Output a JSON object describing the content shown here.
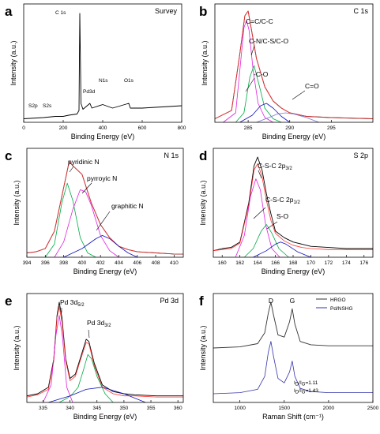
{
  "chart_data": [
    {
      "type": "line",
      "panel": "a",
      "title": "Survey",
      "xlabel": "Binding Energy (eV)",
      "ylabel": "Intensity (a.u.)",
      "xlim": [
        0,
        800
      ],
      "ylim": [
        0,
        100
      ],
      "xticks": [
        0,
        200,
        400,
        600,
        800
      ],
      "annotations": [
        {
          "text": "C 1s",
          "x": 284,
          "y": 93
        },
        {
          "text": "Pd3d",
          "x": 335,
          "y": 17
        },
        {
          "text": "N1s",
          "x": 400,
          "y": 22
        },
        {
          "text": "O1s",
          "x": 532,
          "y": 22
        },
        {
          "text": "S2p",
          "x": 160,
          "y": 2
        },
        {
          "text": "S2s",
          "x": 228,
          "y": 2
        }
      ],
      "series": [
        {
          "color": "#000000",
          "x": [
            0,
            100,
            160,
            200,
            228,
            270,
            280,
            284,
            290,
            300,
            335,
            345,
            400,
            450,
            532,
            540,
            600,
            700,
            800
          ],
          "y": [
            3,
            4,
            5,
            5,
            6,
            7,
            10,
            92,
            16,
            11,
            16,
            12,
            15,
            12,
            16,
            12,
            12,
            13,
            14
          ]
        }
      ]
    },
    {
      "type": "line",
      "panel": "b",
      "title": "C 1s",
      "xlabel": "Binding Energy (eV)",
      "ylabel": "Intensity (a.u.)",
      "xlim": [
        281,
        300
      ],
      "ylim": [
        0,
        100
      ],
      "xticks": [
        285,
        290,
        295
      ],
      "annotations": [
        {
          "text": "C=C/C-C",
          "x": 284.8,
          "y": 96
        },
        {
          "text": "C-N/C-S/C-O",
          "x": 285.8,
          "y": 69
        },
        {
          "text": "-C-O",
          "x": 287.1,
          "y": 22
        },
        {
          "text": "C=O",
          "x": 289.5,
          "y": 8
        }
      ],
      "series": [
        {
          "color": "#000000",
          "x": [
            281,
            283,
            284,
            284.6,
            285,
            285.5,
            286,
            287,
            288,
            289,
            290,
            292,
            295,
            300
          ],
          "y": [
            3,
            10,
            58,
            90,
            94,
            74,
            54,
            30,
            18,
            12,
            8,
            5,
            4,
            3
          ]
        },
        {
          "color": "#ff3333",
          "x": [
            281,
            283,
            284,
            284.6,
            285,
            285.5,
            286,
            287,
            288,
            289,
            290,
            292,
            295,
            300
          ],
          "y": [
            3,
            10,
            58,
            90,
            94,
            74,
            54,
            30,
            18,
            12,
            8,
            5,
            4,
            3
          ]
        },
        {
          "color": "#e020e0",
          "x": [
            282,
            283.5,
            284,
            284.5,
            284.8,
            285.1,
            285.6,
            286.2,
            287,
            288
          ],
          "y": [
            0,
            8,
            44,
            80,
            86,
            78,
            44,
            16,
            4,
            0
          ]
        },
        {
          "color": "#00aa44",
          "x": [
            283.5,
            284.5,
            285.2,
            285.7,
            286.3,
            287,
            288,
            289
          ],
          "y": [
            0,
            8,
            38,
            48,
            32,
            12,
            3,
            0
          ]
        },
        {
          "color": "#1111bb",
          "x": [
            284,
            285.5,
            286.5,
            287.2,
            288,
            289,
            290
          ],
          "y": [
            0,
            6,
            14,
            16,
            12,
            5,
            0
          ]
        },
        {
          "color": "#7777dd",
          "x": [
            286,
            287.5,
            288.5,
            289.5,
            290.5,
            292,
            293.5
          ],
          "y": [
            0,
            4,
            7,
            8,
            7,
            4,
            0
          ]
        }
      ]
    },
    {
      "type": "line",
      "panel": "c",
      "title": "N 1s",
      "xlabel": "Binding Energy (eV)",
      "ylabel": "Intensity (a.u.)",
      "xlim": [
        394,
        411
      ],
      "ylim": [
        0,
        100
      ],
      "xticks": [
        394,
        396,
        398,
        400,
        402,
        404,
        406,
        408,
        410
      ],
      "annotations": [
        {
          "text": "pyridinic N",
          "x": 398.4,
          "y": 82
        },
        {
          "text": "pyrroyic N",
          "x": 400.2,
          "y": 62
        },
        {
          "text": "graphitic N",
          "x": 401.8,
          "y": 20
        }
      ],
      "series": [
        {
          "color": "#000000",
          "x": [
            394,
            395,
            396,
            397,
            398,
            398.6,
            399,
            400,
            401,
            402,
            403,
            404,
            405,
            406,
            408,
            410,
            411
          ],
          "y": [
            4,
            5,
            8,
            24,
            64,
            88,
            84,
            76,
            50,
            30,
            18,
            10,
            7,
            5,
            4,
            3,
            3
          ]
        },
        {
          "color": "#ff3333",
          "x": [
            394,
            395,
            396,
            397,
            398,
            398.6,
            399,
            400,
            401,
            402,
            403,
            404,
            405,
            406,
            408,
            410,
            411
          ],
          "y": [
            4,
            5,
            8,
            24,
            64,
            88,
            84,
            76,
            50,
            30,
            18,
            10,
            7,
            5,
            4,
            3,
            3
          ]
        },
        {
          "color": "#00aa44",
          "x": [
            396,
            397,
            397.8,
            398.4,
            399,
            399.8,
            400.6,
            401.5
          ],
          "y": [
            0,
            12,
            50,
            68,
            52,
            18,
            4,
            0
          ]
        },
        {
          "color": "#e020e0",
          "x": [
            397,
            398,
            399,
            399.8,
            400.4,
            401,
            402,
            403,
            404
          ],
          "y": [
            0,
            14,
            44,
            62,
            60,
            48,
            20,
            6,
            0
          ]
        },
        {
          "color": "#1111bb",
          "x": [
            398,
            400,
            401.5,
            402.2,
            403,
            404,
            405,
            406
          ],
          "y": [
            0,
            8,
            17,
            20,
            17,
            10,
            4,
            0
          ]
        }
      ]
    },
    {
      "type": "line",
      "panel": "d",
      "title": "S 2p",
      "xlabel": "Binding Energy (eV)",
      "ylabel": "Intensity (a.u.)",
      "xlim": [
        159,
        177
      ],
      "ylim": [
        0,
        100
      ],
      "xticks": [
        160,
        162,
        164,
        166,
        168,
        170,
        172,
        174,
        176
      ],
      "annotations": [
        {
          "text": "C-S-C 2p3/2",
          "x": 164,
          "y": 84
        },
        {
          "text": "C-S-C 2p1/2",
          "x": 165.2,
          "y": 40
        },
        {
          "text": "S-O",
          "x": 166.4,
          "y": 20
        }
      ],
      "series": [
        {
          "color": "#000000",
          "x": [
            159,
            160,
            161,
            162,
            163,
            163.6,
            164,
            164.5,
            165,
            165.5,
            166,
            167,
            168,
            169,
            170,
            172,
            174,
            176,
            177
          ],
          "y": [
            6,
            8,
            9,
            14,
            50,
            84,
            92,
            80,
            58,
            40,
            24,
            18,
            14,
            12,
            10,
            9,
            8,
            8,
            8
          ]
        },
        {
          "color": "#ff3333",
          "x": [
            159,
            160,
            161,
            162,
            163,
            163.6,
            164,
            164.5,
            165,
            165.5,
            166,
            167,
            168,
            169,
            170,
            172,
            174,
            176,
            177
          ],
          "y": [
            6,
            7,
            8,
            13,
            48,
            80,
            86,
            74,
            52,
            34,
            22,
            15,
            11,
            9,
            8,
            7,
            7,
            7,
            7
          ]
        },
        {
          "color": "#e020e0",
          "x": [
            161.5,
            162.5,
            163.2,
            163.8,
            164.3,
            164.9,
            165.6,
            166.5
          ],
          "y": [
            0,
            20,
            56,
            72,
            62,
            30,
            8,
            0
          ]
        },
        {
          "color": "#00aa44",
          "x": [
            162.5,
            163.5,
            164.4,
            165,
            165.6,
            166.4,
            167.5
          ],
          "y": [
            0,
            8,
            24,
            30,
            22,
            8,
            0
          ]
        },
        {
          "color": "#1111bb",
          "x": [
            163.5,
            165,
            166,
            166.6,
            167.2,
            168.5,
            170
          ],
          "y": [
            0,
            6,
            12,
            14,
            12,
            5,
            0
          ]
        }
      ]
    },
    {
      "type": "line",
      "panel": "e",
      "title": "Pd 3d",
      "xlabel": "Binding Energy (eV)",
      "ylabel": "Intensity (a.u.)",
      "xlim": [
        332,
        361
      ],
      "ylim": [
        0,
        100
      ],
      "xticks": [
        335,
        340,
        345,
        350,
        355,
        360
      ],
      "annotations": [
        {
          "text": "Pd 3d5/2",
          "x": 338,
          "y": 94
        },
        {
          "text": "Pd 3d3/2",
          "x": 343.4,
          "y": 60
        }
      ],
      "series": [
        {
          "color": "#000000",
          "x": [
            332,
            334,
            336,
            337,
            337.6,
            338,
            338.5,
            339.2,
            340,
            341,
            342,
            343,
            343.5,
            344.5,
            346,
            348,
            350,
            352,
            356,
            361
          ],
          "y": [
            6,
            8,
            14,
            40,
            80,
            92,
            78,
            40,
            22,
            26,
            42,
            58,
            56,
            36,
            16,
            10,
            8,
            7,
            6,
            6
          ]
        },
        {
          "color": "#ff3333",
          "x": [
            332,
            334,
            336,
            337,
            337.6,
            338,
            338.5,
            339.2,
            340,
            341,
            342,
            343,
            343.5,
            344.5,
            346,
            348,
            350,
            352,
            356,
            361
          ],
          "y": [
            5,
            7,
            12,
            38,
            78,
            88,
            74,
            38,
            20,
            24,
            40,
            55,
            54,
            34,
            14,
            8,
            6,
            6,
            5,
            5
          ]
        },
        {
          "color": "#e020e0",
          "x": [
            335,
            336.5,
            337.4,
            338,
            338.6,
            339.4,
            340.5
          ],
          "y": [
            0,
            16,
            62,
            80,
            60,
            14,
            0
          ]
        },
        {
          "color": "#00aa44",
          "x": [
            338,
            339.5,
            340.5,
            341.5,
            342.5,
            343.3,
            344,
            345,
            346.5,
            348
          ],
          "y": [
            0,
            4,
            8,
            14,
            30,
            44,
            40,
            24,
            8,
            0
          ]
        },
        {
          "color": "#1111bb",
          "x": [
            336,
            340,
            343,
            346,
            350,
            354
          ],
          "y": [
            0,
            6,
            12,
            14,
            8,
            0
          ]
        }
      ]
    },
    {
      "type": "line",
      "panel": "f",
      "xlabel": "Raman Shift (cm⁻¹)",
      "ylabel": "Intensity (a.u.)",
      "xlim": [
        700,
        2500
      ],
      "ylim": [
        0,
        100
      ],
      "xticks": [
        1000,
        1500,
        2000,
        2500
      ],
      "peak_labels": [
        {
          "text": "D",
          "x": 1350
        },
        {
          "text": "G",
          "x": 1590
        }
      ],
      "ratio_labels": [
        {
          "text": "I",
          "sub1": "D",
          "mid": "/I",
          "sub2": "G",
          "tail": "=1.11"
        },
        {
          "text": "I",
          "sub1": "D",
          "mid": "/I",
          "sub2": "G",
          "tail": "=1.43"
        }
      ],
      "legend": {
        "position": "top-right"
      },
      "series": [
        {
          "name": "HRGO",
          "color": "#333333",
          "x": [
            700,
            1000,
            1200,
            1280,
            1320,
            1350,
            1380,
            1430,
            1500,
            1560,
            1590,
            1620,
            1680,
            1800,
            2000,
            2500
          ],
          "y": [
            50,
            51,
            54,
            64,
            82,
            92,
            80,
            62,
            60,
            74,
            86,
            72,
            56,
            53,
            52,
            52
          ]
        },
        {
          "name": "Pd/NSHG",
          "color": "#3333aa",
          "x": [
            700,
            1000,
            1200,
            1280,
            1320,
            1350,
            1380,
            1430,
            1500,
            1560,
            1590,
            1620,
            1680,
            1800,
            2000,
            2500
          ],
          "y": [
            8,
            9,
            12,
            24,
            46,
            56,
            42,
            22,
            18,
            28,
            38,
            24,
            13,
            10,
            9,
            9
          ]
        }
      ]
    }
  ]
}
